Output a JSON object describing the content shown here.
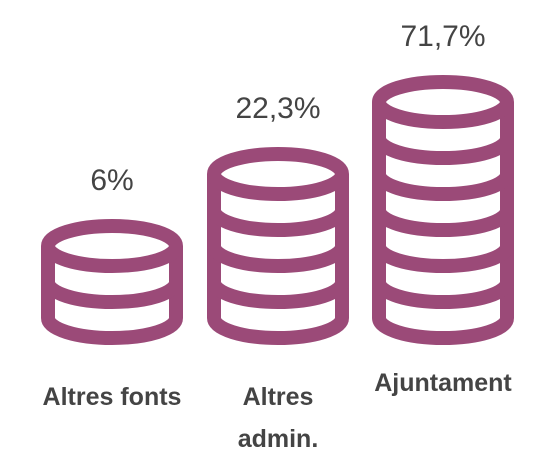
{
  "chart_data": {
    "type": "coin-stack",
    "categories": [
      "Altres fonts",
      "Altres admin.",
      "Ajuntament"
    ],
    "values": [
      6,
      22.3,
      71.7
    ],
    "value_labels": [
      "6%",
      "22,3%",
      "71,7%"
    ],
    "color": "#9b4a78"
  }
}
